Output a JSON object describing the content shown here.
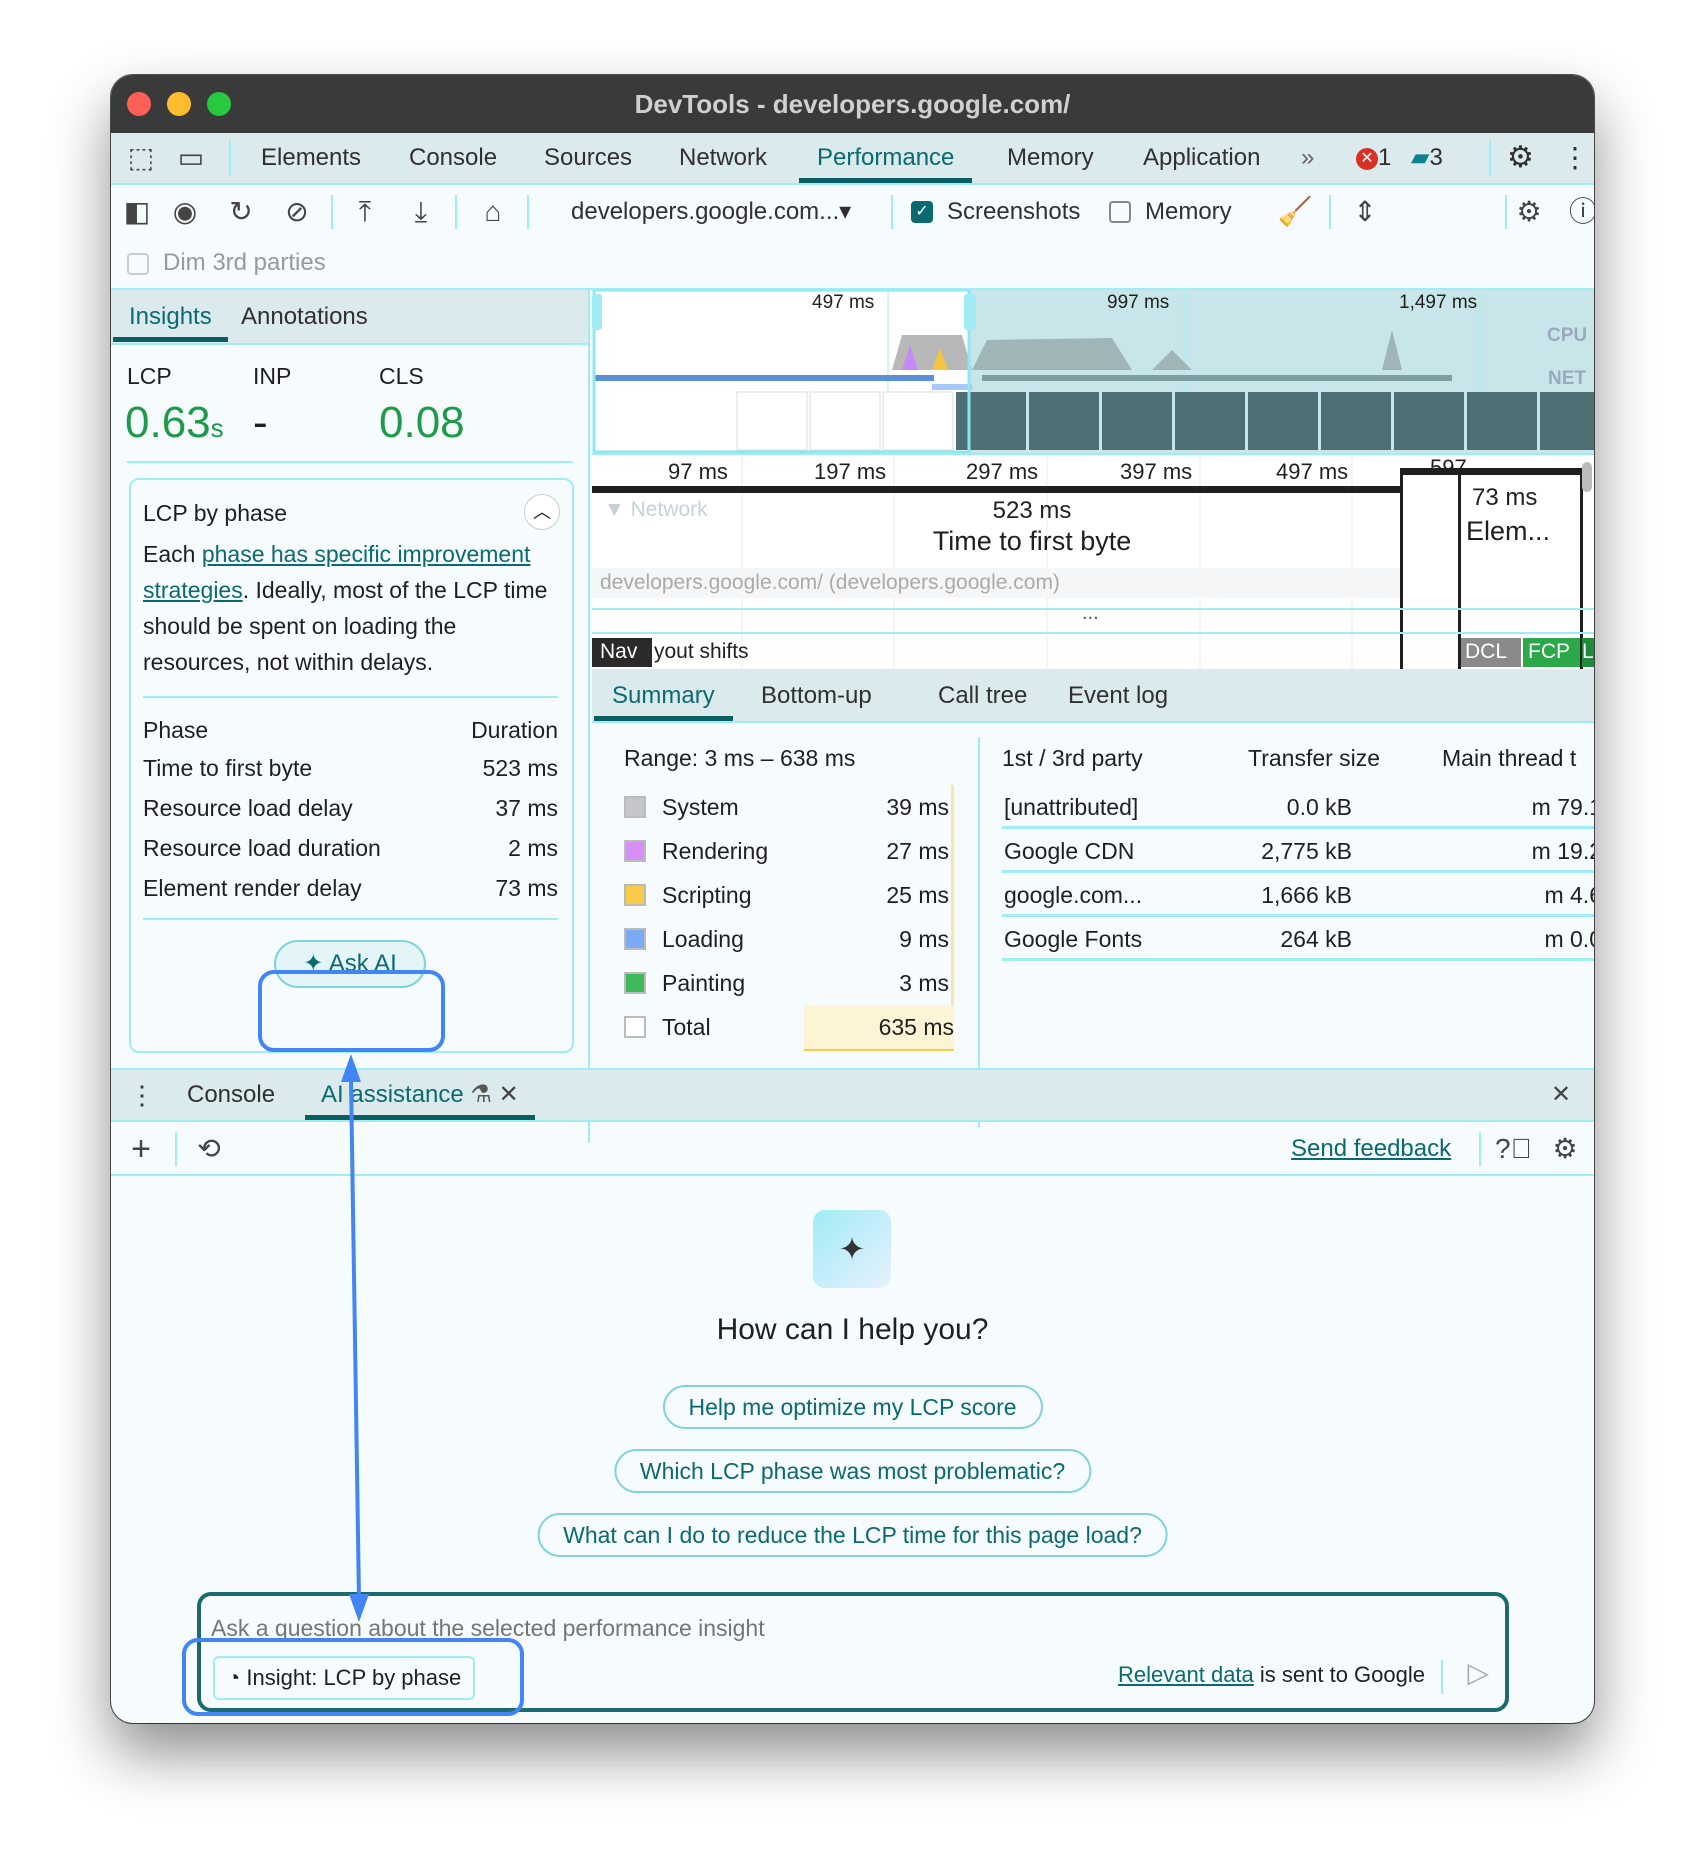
{
  "window": {
    "title": "DevTools - developers.google.com/"
  },
  "main_tabs": [
    "Elements",
    "Console",
    "Sources",
    "Network",
    "Performance",
    "Memory",
    "Application"
  ],
  "active_tab": "Performance",
  "status": {
    "errors": "1",
    "messages": "3"
  },
  "toolbar": {
    "url_select": "developers.google.com...▾",
    "screenshots_label": "Screenshots",
    "screenshots_checked": true,
    "memory_label": "Memory",
    "memory_checked": false,
    "dim_3rd_parties": "Dim 3rd parties"
  },
  "insights": {
    "tabs": [
      "Insights",
      "Annotations"
    ],
    "metrics": [
      {
        "label": "LCP",
        "value": "0.63",
        "unit": "s"
      },
      {
        "label": "INP",
        "value": "-"
      },
      {
        "label": "CLS",
        "value": "0.08"
      }
    ],
    "card": {
      "title": "LCP by phase",
      "text_before": "Each ",
      "link": "phase has specific improvement strategies",
      "text_after": ". Ideally, most of the LCP time should be spent on loading the resources, not within delays.",
      "col_phase": "Phase",
      "col_duration": "Duration",
      "rows": [
        {
          "phase": "Time to first byte",
          "duration": "523 ms"
        },
        {
          "phase": "Resource load delay",
          "duration": "37 ms"
        },
        {
          "phase": "Resource load duration",
          "duration": "2 ms"
        },
        {
          "phase": "Element render delay",
          "duration": "73 ms"
        }
      ],
      "ask_ai": "Ask AI"
    }
  },
  "timeline": {
    "overview_ticks": [
      "497 ms",
      "997 ms",
      "1,497 ms"
    ],
    "cpu_label": "CPU",
    "net_label": "NET",
    "ruler_ticks": [
      "97 ms",
      "197 ms",
      "297 ms",
      "397 ms",
      "497 ms",
      "597"
    ],
    "network_track": "▼ Network",
    "request": "developers.google.com/ (developers.google.com)",
    "ttfb_value": "523 ms",
    "ttfb_label": "Time to first byte",
    "erd_value": "73 ms",
    "erd_label": "Elem...",
    "nav_label": "Nav",
    "layout_shifts": "yout shifts",
    "markers": [
      "DCL",
      "FCP",
      "L"
    ],
    "ellipsis": "..."
  },
  "summary": {
    "tabs": [
      "Summary",
      "Bottom-up",
      "Call tree",
      "Event log"
    ],
    "range": "Range: 3 ms – 638 ms",
    "categories": [
      {
        "name": "System",
        "value": "39 ms",
        "color": "#c4c7c9"
      },
      {
        "name": "Rendering",
        "value": "27 ms",
        "color": "#d58ff5"
      },
      {
        "name": "Scripting",
        "value": "25 ms",
        "color": "#f8cc4a"
      },
      {
        "name": "Loading",
        "value": "9 ms",
        "color": "#7baaf7"
      },
      {
        "name": "Painting",
        "value": "3 ms",
        "color": "#3fb95c"
      },
      {
        "name": "Total",
        "value": "635 ms",
        "color": "#ffffff"
      }
    ],
    "party_headers": [
      "1st / 3rd party",
      "Transfer size",
      "Main thread t"
    ],
    "party_rows": [
      [
        "[unattributed]",
        "0.0 kB",
        "79.1 m"
      ],
      [
        "Google CDN",
        "2,775 kB",
        "19.2 m"
      ],
      [
        "google.com...",
        "1,666 kB",
        "4.6 m"
      ],
      [
        "Google Fonts",
        "264 kB",
        "0.0 m"
      ]
    ]
  },
  "drawer": {
    "tabs": [
      "Console",
      "AI assistance"
    ],
    "send_feedback": "Send feedback"
  },
  "ai": {
    "heading": "How can I help you?",
    "suggestions": [
      "Help me optimize my LCP score",
      "Which LCP phase was most problematic?",
      "What can I do to reduce the LCP time for this page load?"
    ],
    "placeholder": "Ask a question about the selected performance insight",
    "context_chip": "Insight: LCP by phase",
    "disclaimer_link": "Relevant data",
    "disclaimer_text": " is sent to Google"
  },
  "annotation_color": "#4285f4"
}
